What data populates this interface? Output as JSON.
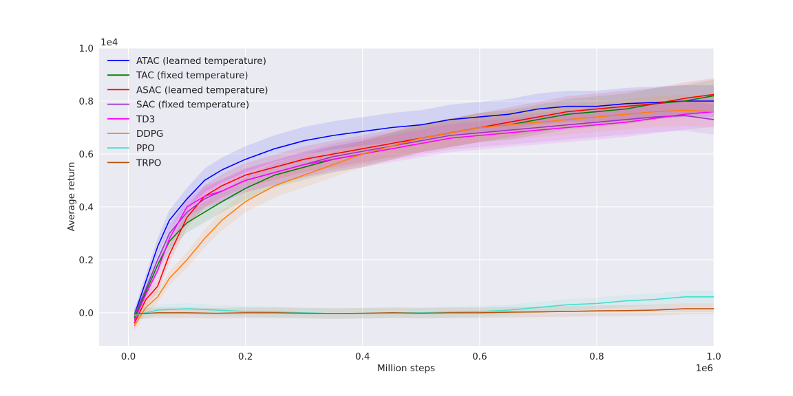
{
  "chart_data": {
    "type": "line",
    "title": "",
    "xlabel": "Million steps",
    "ylabel": "Average return",
    "x_offset_label": "1e6",
    "y_offset_label": "1e4",
    "xlim": [
      -0.05,
      1.0
    ],
    "ylim": [
      -0.125,
      1.0
    ],
    "xticks": [
      0.0,
      0.2,
      0.4,
      0.6,
      0.8,
      1.0
    ],
    "xtick_labels": [
      "0.0",
      "0.2",
      "0.4",
      "0.6",
      "0.8",
      "1.0"
    ],
    "yticks": [
      0.0,
      0.2,
      0.4,
      0.6,
      0.8,
      1.0
    ],
    "ytick_labels": [
      "0.0",
      "0.2",
      "0.4",
      "0.6",
      "0.8",
      "1.0"
    ],
    "grid": true,
    "legend_position": "upper-left",
    "series": [
      {
        "name": "ATAC (learned temperature)",
        "color": "#0000ff",
        "x": [
          0.01,
          0.03,
          0.05,
          0.07,
          0.1,
          0.13,
          0.16,
          0.2,
          0.25,
          0.3,
          0.35,
          0.4,
          0.45,
          0.5,
          0.55,
          0.6,
          0.65,
          0.7,
          0.75,
          0.8,
          0.85,
          0.9,
          0.95,
          1.0
        ],
        "y": [
          -0.01,
          0.12,
          0.25,
          0.35,
          0.43,
          0.5,
          0.54,
          0.58,
          0.62,
          0.65,
          0.67,
          0.685,
          0.7,
          0.71,
          0.73,
          0.74,
          0.75,
          0.77,
          0.78,
          0.78,
          0.79,
          0.795,
          0.8,
          0.8
        ]
      },
      {
        "name": "TAC (fixed temperature)",
        "color": "#008000",
        "x": [
          0.01,
          0.03,
          0.05,
          0.07,
          0.1,
          0.13,
          0.16,
          0.2,
          0.25,
          0.3,
          0.35,
          0.4,
          0.45,
          0.5,
          0.55,
          0.6,
          0.65,
          0.7,
          0.75,
          0.8,
          0.85,
          0.9,
          0.95,
          1.0
        ],
        "y": [
          -0.02,
          0.08,
          0.18,
          0.27,
          0.34,
          0.38,
          0.42,
          0.47,
          0.52,
          0.55,
          0.58,
          0.6,
          0.63,
          0.66,
          0.68,
          0.7,
          0.71,
          0.73,
          0.75,
          0.76,
          0.77,
          0.79,
          0.8,
          0.82
        ]
      },
      {
        "name": "ASAC (learned temperature)",
        "color": "#ff0000",
        "x": [
          0.01,
          0.03,
          0.05,
          0.07,
          0.1,
          0.13,
          0.16,
          0.2,
          0.25,
          0.3,
          0.35,
          0.4,
          0.45,
          0.5,
          0.55,
          0.6,
          0.65,
          0.7,
          0.75,
          0.8,
          0.85,
          0.9,
          0.95,
          1.0
        ],
        "y": [
          -0.04,
          0.05,
          0.1,
          0.22,
          0.36,
          0.44,
          0.48,
          0.52,
          0.55,
          0.58,
          0.6,
          0.62,
          0.64,
          0.66,
          0.68,
          0.7,
          0.72,
          0.74,
          0.76,
          0.77,
          0.78,
          0.79,
          0.81,
          0.825
        ]
      },
      {
        "name": "SAC (fixed temperature)",
        "color": "#9932cc",
        "x": [
          0.01,
          0.03,
          0.05,
          0.07,
          0.1,
          0.13,
          0.16,
          0.2,
          0.25,
          0.3,
          0.35,
          0.4,
          0.45,
          0.5,
          0.55,
          0.6,
          0.65,
          0.7,
          0.75,
          0.8,
          0.85,
          0.9,
          0.95,
          1.0
        ],
        "y": [
          -0.01,
          0.09,
          0.2,
          0.3,
          0.38,
          0.43,
          0.46,
          0.5,
          0.53,
          0.56,
          0.59,
          0.61,
          0.63,
          0.65,
          0.67,
          0.68,
          0.69,
          0.7,
          0.71,
          0.72,
          0.73,
          0.74,
          0.745,
          0.73
        ]
      },
      {
        "name": "TD3",
        "color": "#ff00ff",
        "x": [
          0.01,
          0.03,
          0.05,
          0.07,
          0.1,
          0.13,
          0.16,
          0.2,
          0.25,
          0.3,
          0.35,
          0.4,
          0.45,
          0.5,
          0.55,
          0.6,
          0.65,
          0.7,
          0.75,
          0.8,
          0.85,
          0.9,
          0.95,
          1.0
        ],
        "y": [
          -0.03,
          0.07,
          0.16,
          0.28,
          0.4,
          0.44,
          0.46,
          0.5,
          0.53,
          0.56,
          0.58,
          0.6,
          0.62,
          0.64,
          0.66,
          0.67,
          0.68,
          0.69,
          0.7,
          0.71,
          0.72,
          0.735,
          0.75,
          0.76
        ]
      },
      {
        "name": "DDPG",
        "color": "#ff7f0e",
        "x": [
          0.01,
          0.03,
          0.05,
          0.07,
          0.1,
          0.13,
          0.16,
          0.2,
          0.25,
          0.3,
          0.35,
          0.4,
          0.45,
          0.5,
          0.55,
          0.6,
          0.65,
          0.7,
          0.75,
          0.8,
          0.85,
          0.9,
          0.95,
          1.0
        ],
        "y": [
          -0.05,
          0.02,
          0.06,
          0.13,
          0.2,
          0.28,
          0.35,
          0.42,
          0.48,
          0.52,
          0.56,
          0.6,
          0.63,
          0.66,
          0.68,
          0.7,
          0.71,
          0.72,
          0.73,
          0.74,
          0.75,
          0.76,
          0.765,
          0.76
        ]
      },
      {
        "name": "PPO",
        "color": "#40e0d0",
        "x": [
          0.01,
          0.05,
          0.1,
          0.15,
          0.2,
          0.25,
          0.3,
          0.35,
          0.4,
          0.45,
          0.5,
          0.55,
          0.6,
          0.65,
          0.7,
          0.75,
          0.8,
          0.85,
          0.9,
          0.95,
          1.0
        ],
        "y": [
          -0.01,
          0.01,
          0.015,
          0.01,
          0.005,
          0.003,
          0.0,
          -0.003,
          -0.002,
          0.0,
          0.0,
          0.002,
          0.005,
          0.01,
          0.02,
          0.03,
          0.035,
          0.045,
          0.05,
          0.06,
          0.06
        ]
      },
      {
        "name": "TRPO",
        "color": "#b8520a",
        "x": [
          0.01,
          0.05,
          0.1,
          0.15,
          0.2,
          0.25,
          0.3,
          0.35,
          0.4,
          0.45,
          0.5,
          0.55,
          0.6,
          0.65,
          0.7,
          0.75,
          0.8,
          0.85,
          0.9,
          0.95,
          1.0
        ],
        "y": [
          -0.005,
          0.0,
          0.0,
          -0.002,
          0.0,
          0.0,
          -0.002,
          -0.003,
          -0.002,
          0.0,
          -0.002,
          0.0,
          0.0,
          0.002,
          0.003,
          0.005,
          0.007,
          0.008,
          0.01,
          0.015,
          0.015
        ]
      }
    ]
  }
}
